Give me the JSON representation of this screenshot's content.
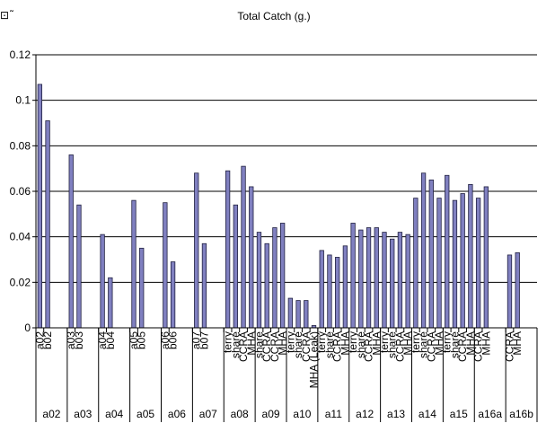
{
  "corner_glyph": "⊡˜",
  "colors": {
    "bar_fill": "#8080c0",
    "bar_stroke": "#202040",
    "grid": "#000000",
    "axis": "#000000"
  },
  "chart_data": {
    "type": "bar",
    "title": "Total Catch (g.)",
    "xlabel": "",
    "ylabel": "",
    "ylim": [
      0,
      0.12
    ],
    "yticks": [
      0,
      0.02,
      0.04,
      0.06,
      0.08,
      0.1,
      0.12
    ],
    "ytick_labels": [
      "0",
      "0.02",
      "0.04",
      "0.06",
      "0.08",
      "0.1",
      "0.12"
    ],
    "grid": true,
    "groups": [
      {
        "name": "a02",
        "categories": [
          "a02",
          "b02"
        ],
        "values": [
          0.107,
          0.091
        ]
      },
      {
        "name": "a03",
        "categories": [
          "a03",
          "b03"
        ],
        "values": [
          0.076,
          0.054
        ]
      },
      {
        "name": "a04",
        "categories": [
          "a04",
          "b04"
        ],
        "values": [
          0.041,
          0.022
        ]
      },
      {
        "name": "a05",
        "categories": [
          "a05",
          "b05"
        ],
        "values": [
          0.056,
          0.035
        ]
      },
      {
        "name": "a06",
        "categories": [
          "a06",
          "b06"
        ],
        "values": [
          0.055,
          0.029
        ]
      },
      {
        "name": "a07",
        "categories": [
          "a07",
          "b07"
        ],
        "values": [
          0.068,
          0.037
        ]
      },
      {
        "name": "a08",
        "categories": [
          "terry",
          "share",
          "CCRA",
          "MHA"
        ],
        "values": [
          0.069,
          0.054,
          0.071,
          0.062
        ]
      },
      {
        "name": "a09",
        "categories": [
          "share",
          "CCRA",
          "CCRA",
          "MHA"
        ],
        "values": [
          0.042,
          0.037,
          0.044,
          0.046
        ]
      },
      {
        "name": "a10",
        "categories": [
          "terry",
          "share",
          "CCRA",
          "MHA (Leak)"
        ],
        "values": [
          0.013,
          0.012,
          0.012,
          0.001
        ]
      },
      {
        "name": "a11",
        "categories": [
          "terry",
          "share",
          "CCRA",
          "MHA"
        ],
        "values": [
          0.034,
          0.032,
          0.031,
          0.036
        ]
      },
      {
        "name": "a12",
        "categories": [
          "terry",
          "share",
          "CCRA",
          "MHA"
        ],
        "values": [
          0.046,
          0.043,
          0.044,
          0.044
        ]
      },
      {
        "name": "a13",
        "categories": [
          "terry",
          "share",
          "CCRA",
          "MHA"
        ],
        "values": [
          0.042,
          0.039,
          0.042,
          0.041
        ]
      },
      {
        "name": "a14",
        "categories": [
          "terry",
          "share",
          "CCRA",
          "MHA"
        ],
        "values": [
          0.057,
          0.068,
          0.065,
          0.057
        ]
      },
      {
        "name": "a15",
        "categories": [
          "terry",
          "share",
          "CCRA",
          "MHA"
        ],
        "values": [
          0.067,
          0.056,
          0.059,
          0.063
        ]
      },
      {
        "name": "a16a",
        "categories": [
          "CCRA",
          "MHA"
        ],
        "values": [
          0.057,
          0.062
        ]
      },
      {
        "name": "a16b",
        "categories": [
          "CCRA",
          "MHA"
        ],
        "values": [
          0.032,
          0.033
        ]
      }
    ]
  }
}
